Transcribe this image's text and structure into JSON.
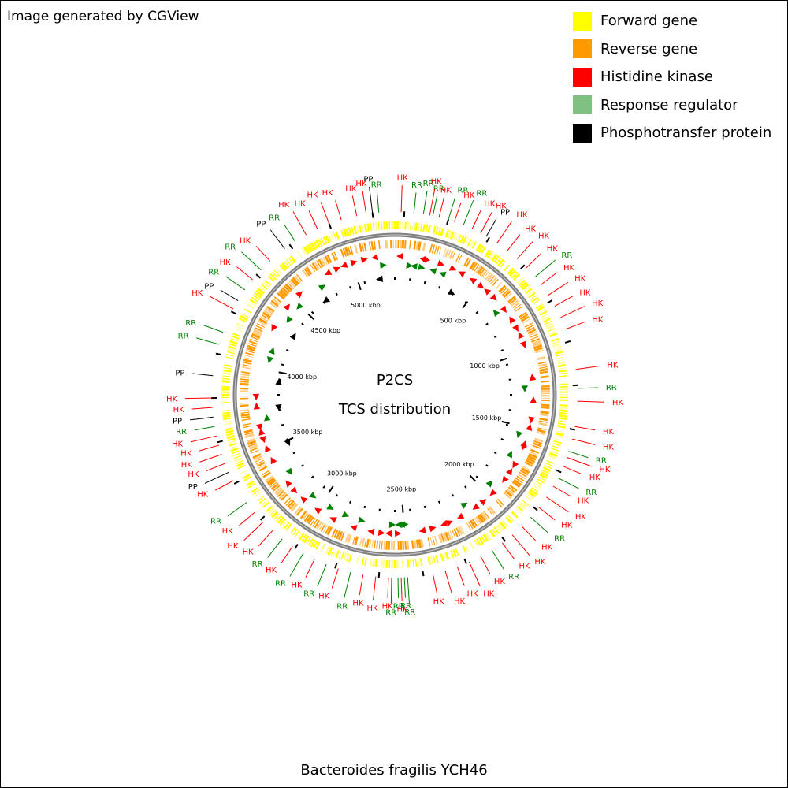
{
  "header": {
    "credit": "Image generated by CGView"
  },
  "legend": [
    {
      "label": "Forward gene",
      "color": "#ffff00"
    },
    {
      "label": "Reverse gene",
      "color": "#ff9900"
    },
    {
      "label": "Histidine kinase",
      "color": "#ff0000"
    },
    {
      "label": "Response regulator",
      "color": "#80c080"
    },
    {
      "label": "Phosphotransfer protein",
      "color": "#000000"
    }
  ],
  "center": {
    "line1": "P2CS",
    "line2": "TCS distribution"
  },
  "genome": {
    "title": "Bacteroides fragilis YCH46"
  },
  "colors": {
    "forward": "#ffff00",
    "reverse": "#ff9900",
    "hk": "#ff0000",
    "rr": "#008000",
    "pp": "#000000",
    "backbone": "#808080"
  },
  "ticks": [
    {
      "label": "500 kbp",
      "deg": 38
    },
    {
      "label": "1000 kbp",
      "deg": 72
    },
    {
      "label": "1500 kbp",
      "deg": 104
    },
    {
      "label": "2000 kbp",
      "deg": 137
    },
    {
      "label": "2500 kbp",
      "deg": 176
    },
    {
      "label": "3000 kbp",
      "deg": 214
    },
    {
      "label": "3500 kbp",
      "deg": 247
    },
    {
      "label": "4000 kbp",
      "deg": 281
    },
    {
      "label": "4500 kbp",
      "deg": 313
    },
    {
      "label": "5000 kbp",
      "deg": 342
    }
  ],
  "features": [
    {
      "label": "PP",
      "type": "pp",
      "deg": 353
    },
    {
      "label": "RR",
      "type": "rr",
      "deg": 355
    },
    {
      "label": "HK",
      "type": "hk",
      "deg": 351
    },
    {
      "label": "HK",
      "type": "hk",
      "deg": 348
    },
    {
      "label": "HK",
      "type": "hk",
      "deg": 2
    },
    {
      "label": "RR",
      "type": "rr",
      "deg": 6
    },
    {
      "label": "RR",
      "type": "rr",
      "deg": 9
    },
    {
      "label": "RR",
      "type": "rr",
      "deg": 12
    },
    {
      "label": "HK",
      "type": "hk",
      "deg": 11
    },
    {
      "label": "HK",
      "type": "hk",
      "deg": 14
    },
    {
      "label": "RR",
      "type": "rr",
      "deg": 17
    },
    {
      "label": "HK",
      "type": "hk",
      "deg": 19
    },
    {
      "label": "RR",
      "type": "rr",
      "deg": 22
    },
    {
      "label": "HK",
      "type": "hk",
      "deg": 25
    },
    {
      "label": "HK",
      "type": "hk",
      "deg": 28
    },
    {
      "label": "PP",
      "type": "pp",
      "deg": 30
    },
    {
      "label": "HK",
      "type": "hk",
      "deg": 34
    },
    {
      "label": "HK",
      "type": "hk",
      "deg": 38
    },
    {
      "label": "HK",
      "type": "hk",
      "deg": 42
    },
    {
      "label": "HK",
      "type": "hk",
      "deg": 46
    },
    {
      "label": "RR",
      "type": "rr",
      "deg": 50
    },
    {
      "label": "HK",
      "type": "hk",
      "deg": 53
    },
    {
      "label": "HK",
      "type": "hk",
      "deg": 57
    },
    {
      "label": "HK",
      "type": "hk",
      "deg": 61
    },
    {
      "label": "HK",
      "type": "hk",
      "deg": 65
    },
    {
      "label": "HK",
      "type": "hk",
      "deg": 69
    },
    {
      "label": "HK",
      "type": "hk",
      "deg": 82
    },
    {
      "label": "RR",
      "type": "rr",
      "deg": 88
    },
    {
      "label": "HK",
      "type": "hk",
      "deg": 92
    },
    {
      "label": "HK",
      "type": "hk",
      "deg": 100
    },
    {
      "label": "HK",
      "type": "hk",
      "deg": 104
    },
    {
      "label": "RR",
      "type": "rr",
      "deg": 108
    },
    {
      "label": "HK",
      "type": "hk",
      "deg": 110
    },
    {
      "label": "HK",
      "type": "hk",
      "deg": 113
    },
    {
      "label": "RR",
      "type": "rr",
      "deg": 117
    },
    {
      "label": "HK",
      "type": "hk",
      "deg": 120
    },
    {
      "label": "HK",
      "type": "hk",
      "deg": 124
    },
    {
      "label": "HK",
      "type": "hk",
      "deg": 128
    },
    {
      "label": "RR",
      "type": "rr",
      "deg": 132
    },
    {
      "label": "HK",
      "type": "hk",
      "deg": 136
    },
    {
      "label": "HK",
      "type": "hk",
      "deg": 140
    },
    {
      "label": "HK",
      "type": "hk",
      "deg": 144
    },
    {
      "label": "RR",
      "type": "rr",
      "deg": 148
    },
    {
      "label": "HK",
      "type": "hk",
      "deg": 152
    },
    {
      "label": "HK",
      "type": "hk",
      "deg": 156
    },
    {
      "label": "HK",
      "type": "hk",
      "deg": 160
    },
    {
      "label": "HK",
      "type": "hk",
      "deg": 164
    },
    {
      "label": "HK",
      "type": "hk",
      "deg": 168
    },
    {
      "label": "RR",
      "type": "rr",
      "deg": 176
    },
    {
      "label": "RR",
      "type": "rr",
      "deg": 177
    },
    {
      "label": "HK",
      "type": "hk",
      "deg": 178
    },
    {
      "label": "RR",
      "type": "rr",
      "deg": 179
    },
    {
      "label": "RR",
      "type": "rr",
      "deg": 181
    },
    {
      "label": "HK",
      "type": "hk",
      "deg": 182
    },
    {
      "label": "HK",
      "type": "hk",
      "deg": 186
    },
    {
      "label": "HK",
      "type": "hk",
      "deg": 190
    },
    {
      "label": "RR",
      "type": "rr",
      "deg": 194
    },
    {
      "label": "HK",
      "type": "hk",
      "deg": 198
    },
    {
      "label": "RR",
      "type": "rr",
      "deg": 202
    },
    {
      "label": "HK",
      "type": "hk",
      "deg": 206
    },
    {
      "label": "RR",
      "type": "rr",
      "deg": 210
    },
    {
      "label": "HK",
      "type": "hk",
      "deg": 214
    },
    {
      "label": "RR",
      "type": "rr",
      "deg": 218
    },
    {
      "label": "HK",
      "type": "hk",
      "deg": 222
    },
    {
      "label": "HK",
      "type": "hk",
      "deg": 226
    },
    {
      "label": "HK",
      "type": "hk",
      "deg": 230
    },
    {
      "label": "RR",
      "type": "rr",
      "deg": 234
    },
    {
      "label": "HK",
      "type": "hk",
      "deg": 242
    },
    {
      "label": "PP",
      "type": "pp",
      "deg": 245
    },
    {
      "label": "HK",
      "type": "hk",
      "deg": 248
    },
    {
      "label": "HK",
      "type": "hk",
      "deg": 251
    },
    {
      "label": "HK",
      "type": "hk",
      "deg": 254
    },
    {
      "label": "HK",
      "type": "hk",
      "deg": 257
    },
    {
      "label": "RR",
      "type": "rr",
      "deg": 260
    },
    {
      "label": "PP",
      "type": "pp",
      "deg": 263
    },
    {
      "label": "HK",
      "type": "hk",
      "deg": 266
    },
    {
      "label": "HK",
      "type": "hk",
      "deg": 269
    },
    {
      "label": "PP",
      "type": "pp",
      "deg": 276
    },
    {
      "label": "RR",
      "type": "rr",
      "deg": 286
    },
    {
      "label": "RR",
      "type": "rr",
      "deg": 290
    },
    {
      "label": "HK",
      "type": "hk",
      "deg": 298
    },
    {
      "label": "PP",
      "type": "pp",
      "deg": 301
    },
    {
      "label": "RR",
      "type": "rr",
      "deg": 305
    },
    {
      "label": "HK",
      "type": "hk",
      "deg": 309
    },
    {
      "label": "RR",
      "type": "rr",
      "deg": 313
    },
    {
      "label": "HK",
      "type": "hk",
      "deg": 317
    },
    {
      "label": "PP",
      "type": "pp",
      "deg": 323
    },
    {
      "label": "RR",
      "type": "rr",
      "deg": 327
    },
    {
      "label": "HK",
      "type": "hk",
      "deg": 331
    },
    {
      "label": "HK",
      "type": "hk",
      "deg": 335
    },
    {
      "label": "HK",
      "type": "hk",
      "deg": 339
    },
    {
      "label": "HK",
      "type": "hk",
      "deg": 343
    }
  ]
}
